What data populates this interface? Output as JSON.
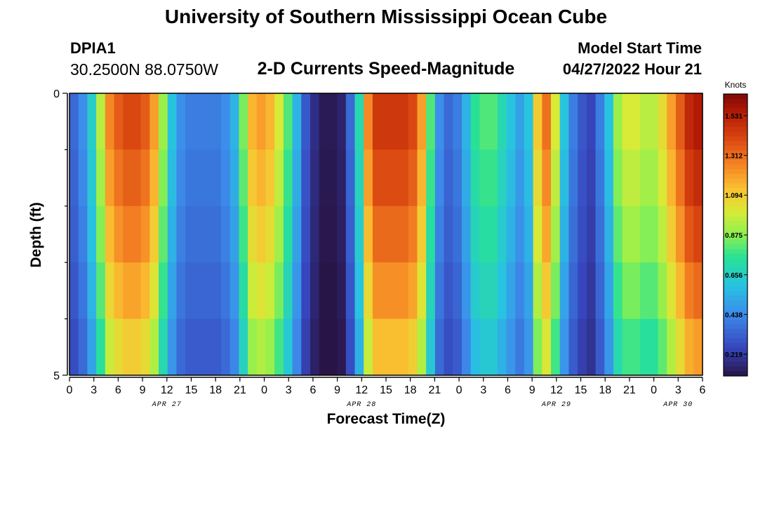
{
  "header": {
    "title": "University of Southern Mississippi Ocean Cube",
    "station_id": "DPIA1",
    "coords": "30.2500N  88.0750W",
    "subtitle": "2-D Currents Speed-Magnitude",
    "model_start_label": "Model Start Time",
    "model_start_value": "04/27/2022 Hour 21"
  },
  "footer": {
    "title": "University of Southern Mississippi Ocean Cube"
  },
  "chart_data": {
    "type": "heatmap",
    "title": "2-D Currents Speed-Magnitude",
    "xlabel": "Forecast Time(Z)",
    "ylabel": "Depth (ft)",
    "colorbar_label": "Knots",
    "colorbar_ticks": [
      "1.531",
      "1.312",
      "1.094",
      "0.875",
      "0.656",
      "0.438",
      "0.219"
    ],
    "colorbar_range": [
      0.1,
      1.65
    ],
    "x_tick_labels": [
      "0",
      "3",
      "6",
      "9",
      "12",
      "15",
      "18",
      "21",
      "0",
      "3",
      "6",
      "9",
      "12",
      "15",
      "18",
      "21",
      "0",
      "3",
      "6",
      "9",
      "12",
      "15",
      "18",
      "21",
      "0",
      "3",
      "6"
    ],
    "x_range_hours": [
      0,
      78
    ],
    "date_labels": [
      {
        "label": "APR 27",
        "hour": 12
      },
      {
        "label": "APR 28",
        "hour": 36
      },
      {
        "label": "APR 29",
        "hour": 60
      },
      {
        "label": "APR 30",
        "hour": 75
      }
    ],
    "y_tick_labels": [
      "0",
      "5"
    ],
    "y_range": [
      0,
      5
    ],
    "depth_bands": 5,
    "surface_speeds": [
      0.35,
      0.45,
      0.65,
      0.95,
      1.25,
      1.35,
      1.4,
      1.4,
      1.35,
      1.2,
      0.9,
      0.6,
      0.45,
      0.4,
      0.4,
      0.4,
      0.4,
      0.45,
      0.55,
      0.85,
      1.15,
      1.2,
      1.15,
      1.0,
      0.8,
      0.55,
      0.3,
      0.18,
      0.12,
      0.12,
      0.15,
      0.35,
      0.7,
      1.25,
      1.45,
      1.45,
      1.45,
      1.45,
      1.4,
      1.2,
      0.8,
      0.45,
      0.35,
      0.4,
      0.55,
      0.75,
      0.8,
      0.8,
      0.7,
      0.6,
      0.5,
      0.6,
      1.1,
      1.3,
      1.0,
      0.6,
      0.4,
      0.3,
      0.25,
      0.4,
      0.6,
      0.9,
      1.0,
      1.0,
      0.95,
      0.95,
      1.05,
      1.2,
      1.35,
      1.5,
      1.55
    ],
    "depth_factors": [
      1.0,
      0.96,
      0.91,
      0.85,
      0.78
    ]
  }
}
